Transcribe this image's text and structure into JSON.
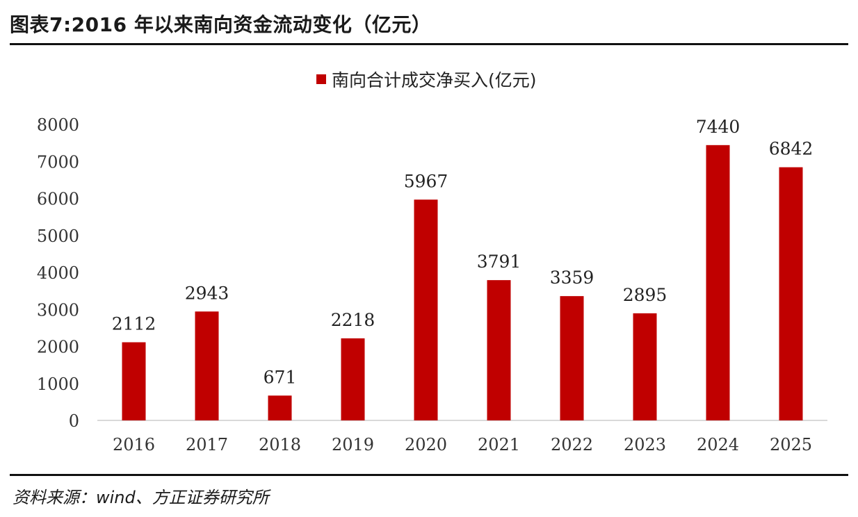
{
  "header": {
    "title": "图表7:2016 年以来南向资金流动变化（亿元）"
  },
  "footer": {
    "source": "资料来源：wind、方正证券研究所"
  },
  "colors": {
    "bar": "#c00000",
    "axis": "#d9d9d9",
    "rule": "#111111"
  },
  "chart_data": {
    "type": "bar",
    "title": "",
    "categories": [
      "2016",
      "2017",
      "2018",
      "2019",
      "2020",
      "2021",
      "2022",
      "2023",
      "2024",
      "2025"
    ],
    "series": [
      {
        "name": "南向合计成交净买入(亿元)",
        "values": [
          2112,
          2943,
          671,
          2218,
          5967,
          3791,
          3359,
          2895,
          7440,
          6842
        ]
      }
    ],
    "y_ticks": [
      0,
      1000,
      2000,
      3000,
      4000,
      5000,
      6000,
      7000,
      8000
    ],
    "ylim": [
      0,
      8000
    ],
    "xlabel": "",
    "ylabel": "",
    "grid": false,
    "data_labels": true,
    "legend_position": "top-center"
  }
}
